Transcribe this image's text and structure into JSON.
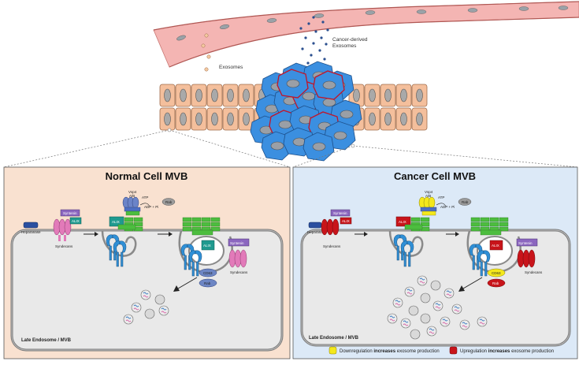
{
  "labels": {
    "exosomes": "Exosomes",
    "cancer_exosomes_line1": "Cancer-derived",
    "cancer_exosomes_line2": "Exosomes",
    "normal_title": "Normal Cell MVB",
    "cancer_title": "Cancer Cell MVB",
    "compartment": "Late Endosome / MVB",
    "heparanase": "Heparanase",
    "syndecans": "Syndecans",
    "syntenin": "Syntenin",
    "alix": "ALIX",
    "vsp4": "Vsp4",
    "ab": "A/B",
    "atp": "ATP",
    "adp": "ADP + Pi",
    "cd63": "CD63",
    "rab": "Rab",
    "escrt": [
      "CHMP6",
      "CHMP4",
      "SNF7",
      "VPS4",
      "CHMP2",
      "CHMP3"
    ]
  },
  "legend": {
    "down_pre": "Downregulation ",
    "down_bold": "increases",
    "down_post": " exosome production",
    "up_pre": "Upregulation ",
    "up_bold": "increases",
    "up_post": " exosome production",
    "down_color": "#f4e81c",
    "up_color": "#c8141a"
  },
  "colors": {
    "normal_panel_bg": "#f9e1d0",
    "cancer_panel_bg": "#dce9f7",
    "cell_fill": "#f4bf9c",
    "tumor_fill": "#3b8fe0",
    "vessel_fill": "#f4b5b3",
    "syndecan": "#e27ab9",
    "escrt_green": "#4dbd3f",
    "alix_teal": "#1f9a8f",
    "syntenin_purple": "#8b66bf",
    "receptor_blue": "#2f8fd6"
  }
}
